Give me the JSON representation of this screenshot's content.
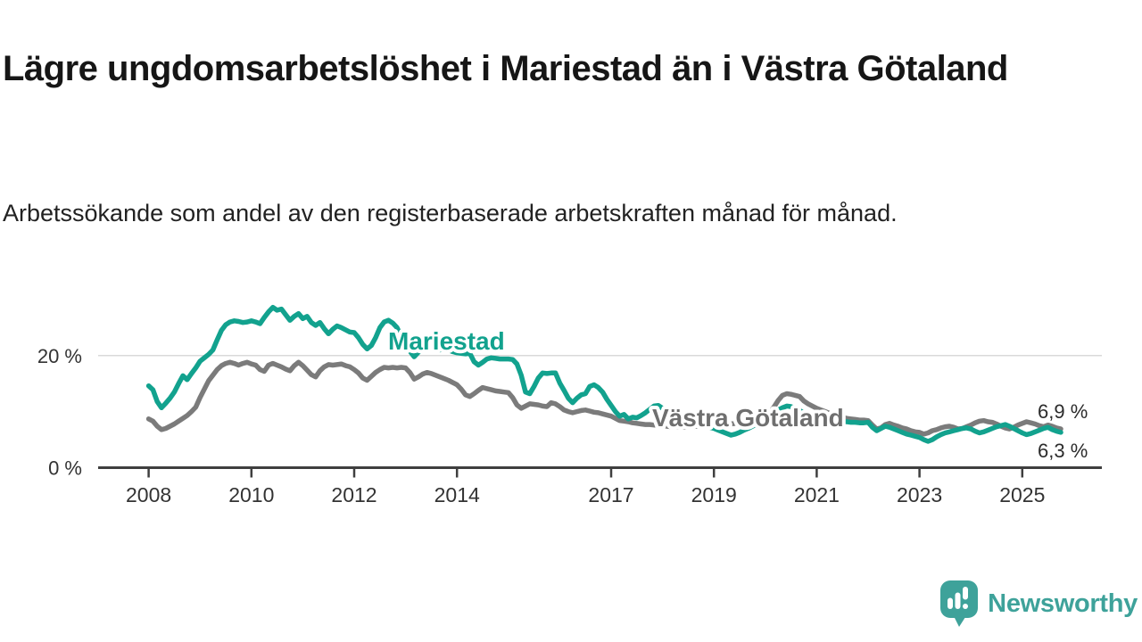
{
  "header": {
    "title": "Lägre ungdomsarbetslöshet i Mariestad än i Västra Götaland",
    "subtitle": "Arbetssökande som andel av den registerbaserade arbetskraften månad för månad."
  },
  "footer": {
    "brand": "Newsworthy",
    "logo_icon": "newsworthy-speech-bubble-bar-chart-icon"
  },
  "colors": {
    "mariestad": "#12a28e",
    "vastra_gotaland": "#7b7b7b",
    "grid": "#d9d9d9",
    "axis": "#3f3f3f",
    "axis_text": "#333333",
    "value_label_text": "#2b2b2b",
    "brand": "#3ea29a"
  },
  "chart_data": {
    "type": "line",
    "unit": "%",
    "title": "Lägre ungdomsarbetslöshet i Mariestad än i Västra Götaland",
    "subtitle": "Arbetssökande som andel av den registerbaserade arbetskraften månad för månad.",
    "x_start_year": 2008,
    "x_step_months": 1,
    "xlim": [
      2007.0,
      2026.5
    ],
    "ylim": [
      0,
      30
    ],
    "grid": "single-horizontal-line-at-20",
    "legend_position": "inline-labels-on-lines",
    "x_axis": {
      "ticks": [
        {
          "year": 2008,
          "label": "2008"
        },
        {
          "year": 2010,
          "label": "2010"
        },
        {
          "year": 2012,
          "label": "2012"
        },
        {
          "year": 2014,
          "label": "2014"
        },
        {
          "year": 2017,
          "label": "2017"
        },
        {
          "year": 2019,
          "label": "2019"
        },
        {
          "year": 2021,
          "label": "2021"
        },
        {
          "year": 2023,
          "label": "2023"
        },
        {
          "year": 2025,
          "label": "2025"
        }
      ]
    },
    "y_axis": {
      "ticks": [
        {
          "value": 20,
          "label": "20 %",
          "gridline": true
        },
        {
          "value": 0,
          "label": "0 %",
          "gridline": false
        }
      ]
    },
    "series": [
      {
        "name": "Mariestad",
        "color": "#12a28e",
        "label_color": "#12a28e",
        "end_label": "6,3 %",
        "values": [
          14.6,
          13.9,
          11.8,
          10.7,
          11.5,
          12.4,
          13.5,
          15.0,
          16.4,
          15.7,
          16.8,
          17.8,
          19.0,
          19.6,
          20.2,
          21.0,
          22.8,
          24.5,
          25.5,
          26.0,
          26.2,
          26.1,
          25.9,
          26.0,
          26.2,
          26.0,
          25.7,
          26.8,
          27.8,
          28.6,
          28.1,
          28.3,
          27.3,
          26.3,
          27.0,
          27.5,
          26.6,
          27.0,
          25.9,
          25.4,
          25.9,
          24.8,
          23.9,
          24.7,
          25.3,
          25.0,
          24.6,
          24.2,
          24.1,
          23.2,
          22.0,
          21.2,
          21.8,
          23.2,
          25.0,
          26.0,
          26.3,
          25.8,
          25.0,
          23.4,
          22.0,
          20.8,
          19.8,
          20.6,
          21.4,
          21.8,
          21.5,
          21.2,
          21.0,
          21.3,
          21.0,
          20.7,
          20.5,
          20.4,
          20.3,
          20.4,
          18.9,
          18.3,
          18.8,
          19.4,
          19.6,
          19.5,
          19.4,
          19.4,
          19.4,
          19.3,
          18.5,
          16.5,
          13.5,
          13.2,
          14.5,
          16.0,
          16.9,
          16.8,
          16.9,
          16.9,
          15.1,
          13.8,
          12.4,
          11.6,
          12.4,
          13.0,
          13.2,
          14.5,
          14.8,
          14.3,
          13.5,
          12.2,
          11.1,
          10.0,
          9.2,
          9.5,
          8.7,
          9.0,
          8.9,
          9.3,
          9.8,
          10.4,
          11.0,
          11.1,
          10.6,
          10.0,
          9.4,
          8.9,
          8.5,
          8.2,
          8.0,
          7.9,
          7.8,
          7.6,
          7.4,
          7.2,
          7.0,
          6.7,
          6.4,
          6.1,
          5.8,
          6.0,
          6.3,
          6.7,
          7.0,
          7.4,
          7.8,
          8.2,
          8.7,
          9.2,
          9.8,
          10.3,
          10.7,
          11.0,
          10.9,
          10.6,
          10.2,
          9.8,
          9.4,
          9.1,
          8.9,
          8.7,
          8.6,
          8.5,
          8.4,
          8.3,
          8.2,
          8.2,
          8.1,
          8.1,
          8.0,
          8.0,
          8.1,
          7.2,
          6.6,
          7.0,
          7.4,
          7.2,
          6.9,
          6.6,
          6.3,
          6.0,
          5.8,
          5.6,
          5.4,
          5.0,
          4.7,
          5.0,
          5.5,
          5.9,
          6.2,
          6.4,
          6.6,
          6.8,
          7.0,
          7.1,
          6.9,
          6.5,
          6.2,
          6.4,
          6.7,
          7.0,
          7.3,
          7.5,
          7.7,
          7.4,
          7.0,
          6.6,
          6.2,
          5.9,
          6.1,
          6.4,
          6.7,
          7.0,
          7.2,
          6.8,
          6.5,
          6.3
        ]
      },
      {
        "name": "Västra Götaland",
        "color": "#7b7b7b",
        "label_color": "#6f6f6f",
        "end_label": "6,9 %",
        "values": [
          8.7,
          8.3,
          7.4,
          6.8,
          7.0,
          7.4,
          7.8,
          8.3,
          8.8,
          9.3,
          10.0,
          10.8,
          12.5,
          14.0,
          15.5,
          16.5,
          17.5,
          18.2,
          18.6,
          18.8,
          18.6,
          18.3,
          18.6,
          18.8,
          18.5,
          18.3,
          17.5,
          17.2,
          18.3,
          18.6,
          18.3,
          18.0,
          17.6,
          17.3,
          18.2,
          18.8,
          18.2,
          17.4,
          16.6,
          16.2,
          17.3,
          18.0,
          18.4,
          18.3,
          18.4,
          18.5,
          18.2,
          18.0,
          17.5,
          16.9,
          16.0,
          15.6,
          16.3,
          17.0,
          17.5,
          17.9,
          17.8,
          17.9,
          17.8,
          17.9,
          17.8,
          17.0,
          15.8,
          16.2,
          16.7,
          17.0,
          16.8,
          16.5,
          16.2,
          15.9,
          15.6,
          15.2,
          14.8,
          14.0,
          13.0,
          12.7,
          13.2,
          13.8,
          14.3,
          14.1,
          13.9,
          13.7,
          13.6,
          13.5,
          13.4,
          12.5,
          11.2,
          10.6,
          11.0,
          11.4,
          11.3,
          11.2,
          11.0,
          10.9,
          11.6,
          11.4,
          10.9,
          10.3,
          10.0,
          9.8,
          10.0,
          10.2,
          10.3,
          10.1,
          9.9,
          9.8,
          9.6,
          9.4,
          9.2,
          8.8,
          8.4,
          8.3,
          8.2,
          8.0,
          7.9,
          7.8,
          7.7,
          7.7,
          7.6,
          7.6,
          7.5,
          7.4,
          7.3,
          7.3,
          7.2,
          7.2,
          7.3,
          7.3,
          7.4,
          7.4,
          7.5,
          7.6,
          7.6,
          7.7,
          7.7,
          7.8,
          7.8,
          7.9,
          8.0,
          8.1,
          8.2,
          8.3,
          8.5,
          8.7,
          9.2,
          9.8,
          10.8,
          12.0,
          12.9,
          13.2,
          13.1,
          12.9,
          12.7,
          11.9,
          11.4,
          11.0,
          10.6,
          10.3,
          10.0,
          9.7,
          9.4,
          9.2,
          9.0,
          8.8,
          8.7,
          8.6,
          8.5,
          8.5,
          8.4,
          7.6,
          6.9,
          7.1,
          7.7,
          7.9,
          7.6,
          7.4,
          7.1,
          6.9,
          6.6,
          6.4,
          6.3,
          6.0,
          6.2,
          6.6,
          6.8,
          7.1,
          7.3,
          7.4,
          7.2,
          6.9,
          7.0,
          7.3,
          7.6,
          8.0,
          8.3,
          8.4,
          8.2,
          8.1,
          7.8,
          7.4,
          7.1,
          6.9,
          7.2,
          7.6,
          7.9,
          8.2,
          8.0,
          7.8,
          7.5,
          7.3,
          7.6,
          7.4,
          7.1,
          6.9
        ]
      }
    ]
  }
}
